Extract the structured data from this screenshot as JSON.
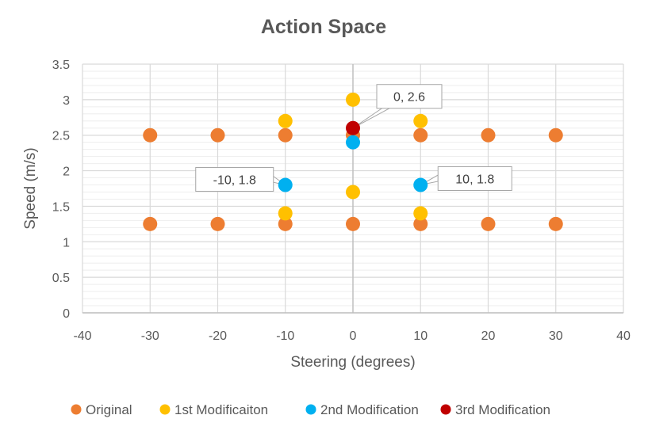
{
  "chart_data": {
    "type": "scatter",
    "title": "Action Space",
    "xlabel": "Steering (degrees)",
    "ylabel": "Speed (m/s)",
    "xlim": [
      -40,
      40
    ],
    "ylim": [
      0,
      3.5
    ],
    "x_ticks": [
      "-40",
      "-30",
      "-20",
      "-10",
      "0",
      "10",
      "20",
      "30",
      "40"
    ],
    "y_ticks": [
      "0",
      "0.5",
      "1",
      "1.5",
      "2",
      "2.5",
      "3",
      "3.5"
    ],
    "grid": true,
    "legend_position": "bottom",
    "series": [
      {
        "name": "Original",
        "color": "#ED7D31",
        "points": [
          [
            -30,
            2.5
          ],
          [
            -20,
            2.5
          ],
          [
            -10,
            2.5
          ],
          [
            0,
            2.5
          ],
          [
            10,
            2.5
          ],
          [
            20,
            2.5
          ],
          [
            30,
            2.5
          ],
          [
            -30,
            1.25
          ],
          [
            -20,
            1.25
          ],
          [
            -10,
            1.25
          ],
          [
            0,
            1.25
          ],
          [
            10,
            1.25
          ],
          [
            20,
            1.25
          ],
          [
            30,
            1.25
          ]
        ]
      },
      {
        "name": "1st Modificaiton",
        "color": "#FFC000",
        "points": [
          [
            -10,
            2.7
          ],
          [
            0,
            3.0
          ],
          [
            10,
            2.7
          ],
          [
            -10,
            1.4
          ],
          [
            0,
            1.7
          ],
          [
            10,
            1.4
          ]
        ]
      },
      {
        "name": "2nd Modification",
        "color": "#00B0F0",
        "points": [
          [
            0,
            2.4
          ],
          [
            -10,
            1.8
          ],
          [
            10,
            1.8
          ]
        ]
      },
      {
        "name": "3rd Modification",
        "color": "#C00000",
        "points": [
          [
            0,
            2.6
          ]
        ]
      }
    ],
    "annotations": [
      {
        "text": "0, 2.6",
        "x": 0,
        "y": 2.6
      },
      {
        "text": "-10, 1.8",
        "x": -10,
        "y": 1.8
      },
      {
        "text": "10, 1.8",
        "x": 10,
        "y": 1.8
      }
    ]
  }
}
